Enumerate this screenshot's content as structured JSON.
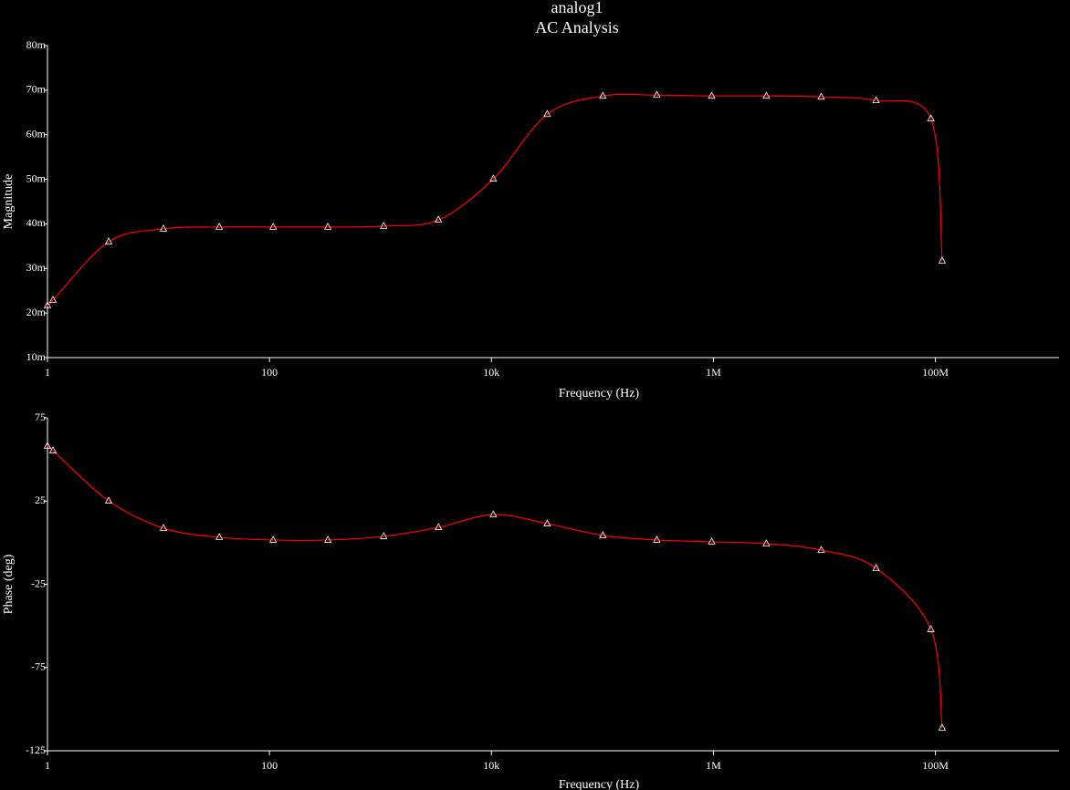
{
  "chart_data": [
    {
      "type": "line",
      "title": "analog1",
      "subtitle": "AC Analysis",
      "xlabel": "Frequency (Hz)",
      "ylabel": "Magnitude",
      "xscale": "log",
      "xlim": [
        1,
        1300000000
      ],
      "xticks": [
        1,
        100,
        {
          "value": 10000,
          "label": "10k"
        },
        {
          "value": 1000000,
          "label": "1M"
        },
        {
          "value": 100000000,
          "label": "100M"
        }
      ],
      "ylim": [
        0.01,
        0.08
      ],
      "yticks": [
        {
          "value": 0.01,
          "label": "10m"
        },
        {
          "value": 0.02,
          "label": "20m"
        },
        {
          "value": 0.03,
          "label": "30m"
        },
        {
          "value": 0.04,
          "label": "40m"
        },
        {
          "value": 0.05,
          "label": "50m"
        },
        {
          "value": 0.06,
          "label": "60m"
        },
        {
          "value": 0.07,
          "label": "70m"
        },
        {
          "value": 0.08,
          "label": "80m"
        }
      ],
      "x": [
        1,
        1.12,
        3.56,
        11.1,
        35.3,
        108,
        336,
        1070,
        3330,
        10400,
        31800,
        101000,
        309000,
        964000,
        3000000,
        9350000,
        29200000,
        91000000,
        115000000
      ],
      "series": [
        {
          "color": "#ff0000",
          "values": [
            0.0217,
            0.0229,
            0.036,
            0.0389,
            0.0393,
            0.0393,
            0.0393,
            0.0395,
            0.0409,
            0.0501,
            0.0646,
            0.0687,
            0.0689,
            0.0687,
            0.0687,
            0.0685,
            0.0677,
            0.0636,
            0.0317
          ]
        }
      ]
    },
    {
      "type": "line",
      "xlabel": "Frequency (Hz)",
      "ylabel": "Phase (deg)",
      "xscale": "log",
      "xlim": [
        1,
        1300000000
      ],
      "xticks": [
        1,
        100,
        {
          "value": 10000,
          "label": "10k"
        },
        {
          "value": 1000000,
          "label": "1M"
        },
        {
          "value": 100000000,
          "label": "100M"
        }
      ],
      "ylim": [
        -125,
        75
      ],
      "yticks": [
        -125,
        -75,
        -25,
        25,
        75
      ],
      "x": [
        1,
        1.12,
        3.56,
        11.1,
        35.3,
        108,
        336,
        1070,
        3330,
        10400,
        31800,
        101000,
        309000,
        964000,
        3000000,
        9350000,
        29200000,
        91000000,
        115000000
      ],
      "series": [
        {
          "color": "#ff0000",
          "values": [
            58.0,
            55.3,
            25.1,
            8.7,
            3.2,
            1.6,
            1.6,
            3.8,
            9.2,
            16.9,
            11.4,
            4.3,
            1.6,
            0.5,
            -0.6,
            -4.5,
            -15.4,
            -52.1,
            -111.3
          ]
        }
      ]
    }
  ]
}
